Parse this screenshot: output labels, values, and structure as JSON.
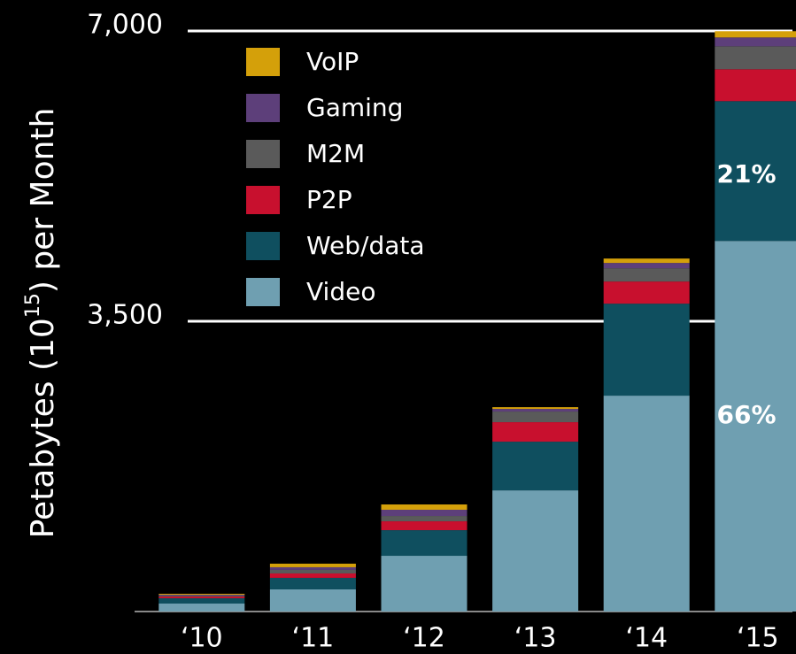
{
  "chart_data": {
    "type": "stacked_bar",
    "ylabel": [
      "Petabytes (10",
      "15",
      ") per Month"
    ],
    "categories": [
      "‘10",
      "‘11",
      "‘12",
      "‘13",
      "‘14",
      "‘15"
    ],
    "series": [
      {
        "name": "Video",
        "color": "#6f9fb1",
        "values": [
          96,
          267,
          672,
          1461,
          2603,
          4469
        ]
      },
      {
        "name": "Web/data",
        "color": "#0f4f5f",
        "values": [
          64,
          139,
          309,
          587,
          1109,
          1685
        ]
      },
      {
        "name": "P2P",
        "color": "#c8102e",
        "values": [
          21,
          53,
          107,
          235,
          267,
          384
        ]
      },
      {
        "name": "M2M",
        "color": "#5a5a5a",
        "values": [
          11,
          43,
          64,
          128,
          160,
          277
        ]
      },
      {
        "name": "Gaming",
        "color": "#5d3f7a",
        "values": [
          11,
          32,
          75,
          32,
          64,
          107
        ]
      },
      {
        "name": "VoIP",
        "color": "#d4a00a",
        "values": [
          11,
          43,
          64,
          21,
          53,
          75
        ]
      }
    ],
    "annotations": [
      "21%",
      "66%"
    ],
    "ylim": [
      0,
      7000
    ],
    "yticks": [
      {
        "value": 3500,
        "label": "3,500"
      },
      {
        "value": 7000,
        "label": "7,000"
      }
    ],
    "grid": true,
    "legend": "top-left"
  }
}
